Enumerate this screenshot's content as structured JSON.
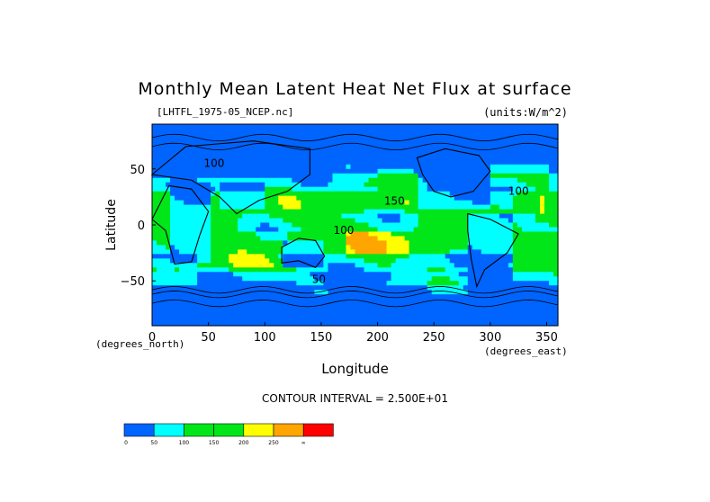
{
  "chart_data": {
    "type": "heatmap",
    "title": "Monthly Mean Latent Heat Net Flux at surface",
    "dataset": "[LHTFL_1975-05_NCEP.nc]",
    "units": "(units:W/m^2)",
    "xlabel": "Longitude",
    "ylabel": "Latitude",
    "x_unit": "(degrees_east)",
    "y_unit": "(degrees_north)",
    "xlim": [
      0,
      360
    ],
    "ylim": [
      -90,
      90
    ],
    "xticks": [
      0,
      50,
      100,
      150,
      200,
      250,
      300,
      350
    ],
    "yticks": [
      -50,
      0,
      50
    ],
    "contour_interval_text": "CONTOUR INTERVAL = 2.500E+01",
    "contour_labels": [
      {
        "text": "100",
        "lon": 55,
        "lat": 52
      },
      {
        "text": "150",
        "lon": 215,
        "lat": 18
      },
      {
        "text": "100",
        "lon": 170,
        "lat": -8
      },
      {
        "text": "100",
        "lon": 325,
        "lat": 27
      },
      {
        "text": "50",
        "lon": 148,
        "lat": -52
      }
    ],
    "colorbar": {
      "levels": [
        "0",
        "50",
        "100",
        "150",
        "200",
        "250",
        "∞"
      ],
      "colors": [
        "#0064ff",
        "#00ffff",
        "#00e619",
        "#00e619",
        "#ffff00",
        "#ffa500",
        "#ff0000"
      ]
    },
    "field_bands": [
      {
        "lat_from": 90,
        "lat_to": 60,
        "value": 10
      },
      {
        "lat_from": 60,
        "lat_to": 45,
        "value": 40
      },
      {
        "lat_from": 45,
        "lat_to": 30,
        "value": 80
      },
      {
        "lat_from": 30,
        "lat_to": 10,
        "value": 140
      },
      {
        "lat_from": 10,
        "lat_to": -5,
        "value": 110
      },
      {
        "lat_from": -5,
        "lat_to": -25,
        "value": 150
      },
      {
        "lat_from": -25,
        "lat_to": -40,
        "value": 90
      },
      {
        "lat_from": -40,
        "lat_to": -55,
        "value": 50
      },
      {
        "lat_from": -55,
        "lat_to": -90,
        "value": 10
      }
    ]
  }
}
